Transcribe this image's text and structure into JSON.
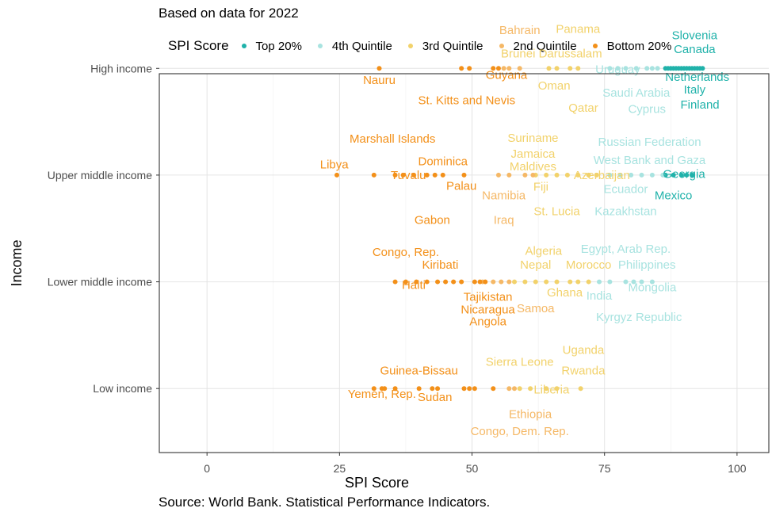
{
  "subtitle": "Based on data for 2022",
  "caption": "Source: World Bank. Statistical Performance Indicators.",
  "legend": {
    "title": "SPI Score",
    "items": [
      {
        "label": "Top 20%",
        "color": "#20b2aa"
      },
      {
        "label": "4th Quintile",
        "color": "#a8e3e0"
      },
      {
        "label": "3rd Quintile",
        "color": "#f2d26b"
      },
      {
        "label": "2nd Quintile",
        "color": "#f5b866"
      },
      {
        "label": "Bottom 20%",
        "color": "#f39019"
      }
    ]
  },
  "chart_data": {
    "type": "scatter",
    "xlabel": "SPI Score",
    "ylabel": "Income",
    "xlim": [
      -9,
      106
    ],
    "xticks": [
      0,
      25,
      50,
      75,
      100
    ],
    "categories": [
      "Low income",
      "Lower middle income",
      "Upper middle income",
      "High income"
    ],
    "grid": true,
    "legend_position": "top",
    "series": [
      {
        "name": "Top 20%",
        "color": "#20b2aa",
        "points": [
          {
            "category": "High income",
            "x": [
              86.5,
              87,
              87.5,
              88,
              88.5,
              89,
              89.5,
              90,
              90.5,
              91,
              91.5,
              92,
              92.5,
              93,
              93.5
            ]
          },
          {
            "category": "Upper middle income",
            "x": [
              86.5,
              88,
              89.5,
              90.5,
              91.5
            ]
          }
        ]
      },
      {
        "name": "4th Quintile",
        "color": "#a8e3e0",
        "points": [
          {
            "category": "High income",
            "x": [
              76,
              77.5,
              79,
              81,
              83,
              84,
              85
            ]
          },
          {
            "category": "Upper middle income",
            "x": [
              76,
              78,
              80,
              82,
              84,
              86
            ]
          },
          {
            "category": "Lower middle income",
            "x": [
              74,
              76,
              79,
              80.5,
              82,
              84
            ]
          }
        ]
      },
      {
        "name": "3rd Quintile",
        "color": "#f2d26b",
        "points": [
          {
            "category": "High income",
            "x": [
              64.5,
              66,
              68.5,
              70
            ]
          },
          {
            "category": "Upper middle income",
            "x": [
              62,
              64,
              66,
              68,
              70,
              72,
              73.5
            ]
          },
          {
            "category": "Lower middle income",
            "x": [
              58,
              60,
              62,
              64,
              66,
              68.5,
              70,
              72
            ]
          },
          {
            "category": "Low income",
            "x": [
              59,
              61,
              64,
              66,
              70.5
            ]
          }
        ]
      },
      {
        "name": "2nd Quintile",
        "color": "#f5b866",
        "points": [
          {
            "category": "High income",
            "x": [
              56,
              57,
              59
            ]
          },
          {
            "category": "Upper middle income",
            "x": [
              55,
              57,
              60,
              61.5
            ]
          },
          {
            "category": "Lower middle income",
            "x": [
              52,
              54,
              55.5,
              57
            ]
          },
          {
            "category": "Low income",
            "x": [
              57,
              58
            ]
          }
        ]
      },
      {
        "name": "Bottom 20%",
        "color": "#f39019",
        "points": [
          {
            "category": "High income",
            "x": [
              32.5,
              48,
              49.5,
              54,
              55
            ]
          },
          {
            "category": "Upper middle income",
            "x": [
              24.5,
              31.5,
              35.5,
              37,
              39,
              41.5,
              43,
              44.5,
              48.5
            ]
          },
          {
            "category": "Lower middle income",
            "x": [
              35.5,
              37.5,
              39.5,
              41.5,
              43.5,
              45,
              46.5,
              48,
              50.5,
              51.5,
              52.5
            ]
          },
          {
            "category": "Low income",
            "x": [
              31.5,
              33,
              33.5,
              35.5,
              40,
              42.5,
              43.5,
              48.5,
              49.5,
              50.5,
              54
            ]
          }
        ]
      }
    ],
    "annotations": [
      {
        "text": "Slovenia",
        "x": 92,
        "y": 0.31,
        "row": "High income",
        "color": "#20b2aa"
      },
      {
        "text": "Canada",
        "x": 92,
        "y": 0.18,
        "row": "High income",
        "color": "#20b2aa"
      },
      {
        "text": "Netherlands",
        "x": 92.5,
        "y": -0.08,
        "row": "High income",
        "color": "#20b2aa"
      },
      {
        "text": "Italy",
        "x": 92,
        "y": -0.2,
        "row": "High income",
        "color": "#20b2aa"
      },
      {
        "text": "Finland",
        "x": 93,
        "y": -0.34,
        "row": "High income",
        "color": "#20b2aa"
      },
      {
        "text": "Uruguay",
        "x": 77.5,
        "y": -0.01,
        "row": "High income",
        "color": "#a8e3e0"
      },
      {
        "text": "Saudi Arabia",
        "x": 81,
        "y": -0.23,
        "row": "High income",
        "color": "#a8e3e0"
      },
      {
        "text": "Cyprus",
        "x": 83,
        "y": -0.38,
        "row": "High income",
        "color": "#a8e3e0"
      },
      {
        "text": "Panama",
        "x": 70,
        "y": 0.37,
        "row": "High income",
        "color": "#f2d26b"
      },
      {
        "text": "Brunei Darussalam",
        "x": 65,
        "y": 0.14,
        "row": "High income",
        "color": "#f2d26b"
      },
      {
        "text": "Oman",
        "x": 65.5,
        "y": -0.16,
        "row": "High income",
        "color": "#f2d26b"
      },
      {
        "text": "Qatar",
        "x": 71,
        "y": -0.37,
        "row": "High income",
        "color": "#f2d26b"
      },
      {
        "text": "Bahrain",
        "x": 59,
        "y": 0.36,
        "row": "High income",
        "color": "#f5b866"
      },
      {
        "text": "Guyana",
        "x": 56.5,
        "y": -0.06,
        "row": "High income",
        "color": "#f39019"
      },
      {
        "text": "Nauru",
        "x": 32.5,
        "y": -0.11,
        "row": "High income",
        "color": "#f39019"
      },
      {
        "text": "St. Kitts and Nevis",
        "x": 49,
        "y": -0.3,
        "row": "High income",
        "color": "#f39019"
      },
      {
        "text": "Russian Federation",
        "x": 83.5,
        "y": 0.31,
        "row": "Upper middle income",
        "color": "#a8e3e0"
      },
      {
        "text": "West Bank and Gaza",
        "x": 83.5,
        "y": 0.14,
        "row": "Upper middle income",
        "color": "#a8e3e0"
      },
      {
        "text": "Georgia",
        "x": 90,
        "y": 0.01,
        "row": "Upper middle income",
        "color": "#20b2aa"
      },
      {
        "text": "Azerbaijan",
        "x": 74.5,
        "y": 0.0,
        "row": "Upper middle income",
        "color": "#f2d26b"
      },
      {
        "text": "Ecuador",
        "x": 79,
        "y": -0.13,
        "row": "Upper middle income",
        "color": "#a8e3e0"
      },
      {
        "text": "Mexico",
        "x": 88,
        "y": -0.19,
        "row": "Upper middle income",
        "color": "#20b2aa"
      },
      {
        "text": "Kazakhstan",
        "x": 79,
        "y": -0.34,
        "row": "Upper middle income",
        "color": "#a8e3e0"
      },
      {
        "text": "Suriname",
        "x": 61.5,
        "y": 0.35,
        "row": "Upper middle income",
        "color": "#f2d26b"
      },
      {
        "text": "Jamaica",
        "x": 61.5,
        "y": 0.2,
        "row": "Upper middle income",
        "color": "#f2d26b"
      },
      {
        "text": "Maldives",
        "x": 61.5,
        "y": 0.08,
        "row": "Upper middle income",
        "color": "#f2d26b"
      },
      {
        "text": "Fiji",
        "x": 63,
        "y": -0.11,
        "row": "Upper middle income",
        "color": "#f2d26b"
      },
      {
        "text": "St. Lucia",
        "x": 66,
        "y": -0.34,
        "row": "Upper middle income",
        "color": "#f2d26b"
      },
      {
        "text": "Namibia",
        "x": 56,
        "y": -0.19,
        "row": "Upper middle income",
        "color": "#f5b866"
      },
      {
        "text": "Iraq",
        "x": 56,
        "y": -0.42,
        "row": "Upper middle income",
        "color": "#f5b866"
      },
      {
        "text": "Marshall Islands",
        "x": 35,
        "y": 0.34,
        "row": "Upper middle income",
        "color": "#f39019"
      },
      {
        "text": "Dominica",
        "x": 44.5,
        "y": 0.13,
        "row": "Upper middle income",
        "color": "#f39019"
      },
      {
        "text": "Libya",
        "x": 24,
        "y": 0.1,
        "row": "Upper middle income",
        "color": "#f39019"
      },
      {
        "text": "Tuvalu",
        "x": 38,
        "y": 0.0,
        "row": "Upper middle income",
        "color": "#f39019"
      },
      {
        "text": "Palau",
        "x": 48,
        "y": -0.1,
        "row": "Upper middle income",
        "color": "#f39019"
      },
      {
        "text": "Gabon",
        "x": 42.5,
        "y": -0.42,
        "row": "Upper middle income",
        "color": "#f39019"
      },
      {
        "text": "Egypt, Arab Rep.",
        "x": 79,
        "y": 0.31,
        "row": "Lower middle income",
        "color": "#a8e3e0"
      },
      {
        "text": "Philippines",
        "x": 83,
        "y": 0.16,
        "row": "Lower middle income",
        "color": "#a8e3e0"
      },
      {
        "text": "Mongolia",
        "x": 84,
        "y": -0.05,
        "row": "Lower middle income",
        "color": "#a8e3e0"
      },
      {
        "text": "India",
        "x": 74,
        "y": -0.13,
        "row": "Lower middle income",
        "color": "#a8e3e0"
      },
      {
        "text": "Kyrgyz Republic",
        "x": 81.5,
        "y": -0.33,
        "row": "Lower middle income",
        "color": "#a8e3e0"
      },
      {
        "text": "Algeria",
        "x": 63.5,
        "y": 0.29,
        "row": "Lower middle income",
        "color": "#f2d26b"
      },
      {
        "text": "Nepal",
        "x": 62,
        "y": 0.16,
        "row": "Lower middle income",
        "color": "#f2d26b"
      },
      {
        "text": "Morocco",
        "x": 72,
        "y": 0.16,
        "row": "Lower middle income",
        "color": "#f2d26b"
      },
      {
        "text": "Ghana",
        "x": 67.5,
        "y": -0.1,
        "row": "Lower middle income",
        "color": "#f2d26b"
      },
      {
        "text": "Samoa",
        "x": 62,
        "y": -0.25,
        "row": "Lower middle income",
        "color": "#f5b866"
      },
      {
        "text": "Congo, Rep.",
        "x": 37.5,
        "y": 0.28,
        "row": "Lower middle income",
        "color": "#f39019"
      },
      {
        "text": "Kiribati",
        "x": 44,
        "y": 0.16,
        "row": "Lower middle income",
        "color": "#f39019"
      },
      {
        "text": "Haiti",
        "x": 39,
        "y": -0.03,
        "row": "Lower middle income",
        "color": "#f39019"
      },
      {
        "text": "Tajikistan",
        "x": 53,
        "y": -0.14,
        "row": "Lower middle income",
        "color": "#f39019"
      },
      {
        "text": "Nicaragua",
        "x": 53,
        "y": -0.26,
        "row": "Lower middle income",
        "color": "#f39019"
      },
      {
        "text": "Angola",
        "x": 53,
        "y": -0.37,
        "row": "Lower middle income",
        "color": "#f39019"
      },
      {
        "text": "Uganda",
        "x": 71,
        "y": 0.36,
        "row": "Low income",
        "color": "#f2d26b"
      },
      {
        "text": "Sierra Leone",
        "x": 59,
        "y": 0.25,
        "row": "Low income",
        "color": "#f2d26b"
      },
      {
        "text": "Rwanda",
        "x": 71,
        "y": 0.17,
        "row": "Low income",
        "color": "#f2d26b"
      },
      {
        "text": "Liberia",
        "x": 65,
        "y": -0.01,
        "row": "Low income",
        "color": "#f2d26b"
      },
      {
        "text": "Ethiopia",
        "x": 61,
        "y": -0.24,
        "row": "Low income",
        "color": "#f5b866"
      },
      {
        "text": "Congo, Dem. Rep.",
        "x": 59,
        "y": -0.4,
        "row": "Low income",
        "color": "#f5b866"
      },
      {
        "text": "Guinea-Bissau",
        "x": 40,
        "y": 0.17,
        "row": "Low income",
        "color": "#f39019"
      },
      {
        "text": "Yemen, Rep.",
        "x": 33,
        "y": -0.05,
        "row": "Low income",
        "color": "#f39019"
      },
      {
        "text": "Sudan",
        "x": 43,
        "y": -0.08,
        "row": "Low income",
        "color": "#f39019"
      }
    ]
  }
}
